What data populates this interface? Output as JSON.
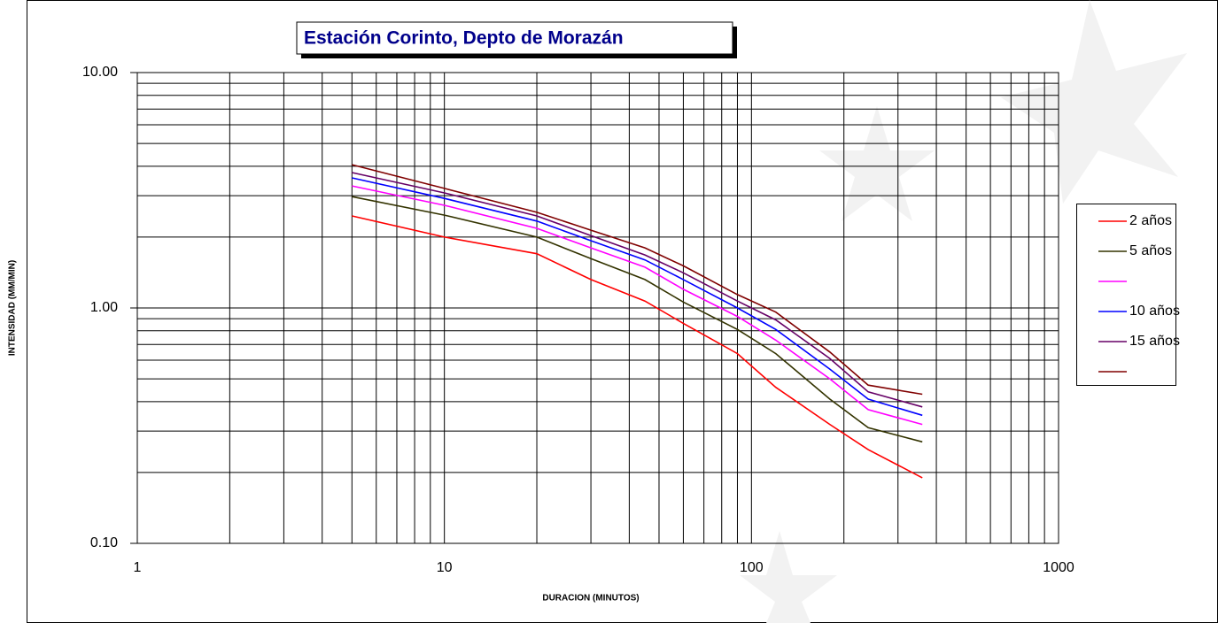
{
  "chart_data": {
    "type": "line",
    "title": "Estación Corinto, Depto de Morazán",
    "x_label": "DURACION (MINUTOS)",
    "y_label": "INTENSIDAD (MM/MIN)",
    "x": [
      5,
      10,
      20,
      30,
      45,
      60,
      90,
      120,
      180,
      240,
      360
    ],
    "series": [
      {
        "name": "2 años",
        "color": "#ff0000",
        "values": [
          2.46,
          2.0,
          1.7,
          1.32,
          1.07,
          0.86,
          0.64,
          0.46,
          0.32,
          0.25,
          0.19
        ]
      },
      {
        "name": "5 años",
        "color": "#333300",
        "values": [
          2.97,
          2.48,
          2.0,
          1.62,
          1.32,
          1.06,
          0.81,
          0.64,
          0.41,
          0.31,
          0.27
        ]
      },
      {
        "color": "#ff00ff",
        "values": [
          3.3,
          2.73,
          2.18,
          1.8,
          1.49,
          1.2,
          0.92,
          0.73,
          0.5,
          0.37,
          0.32
        ]
      },
      {
        "name": "10 años",
        "color": "#0000ff",
        "values": [
          3.57,
          2.92,
          2.34,
          1.93,
          1.6,
          1.32,
          1.0,
          0.81,
          0.55,
          0.41,
          0.35
        ]
      },
      {
        "name": "15 años",
        "color": "#660066",
        "values": [
          3.76,
          3.08,
          2.46,
          2.03,
          1.68,
          1.41,
          1.07,
          0.89,
          0.61,
          0.44,
          0.38
        ]
      },
      {
        "color": "#800000",
        "values": [
          4.06,
          3.22,
          2.55,
          2.14,
          1.8,
          1.51,
          1.14,
          0.96,
          0.65,
          0.47,
          0.43
        ]
      }
    ],
    "xlim": [
      1,
      1000
    ],
    "ylim": [
      0.1,
      10
    ],
    "xticks": [
      1,
      10,
      100,
      1000
    ],
    "yticks": [
      {
        "value": 0.1,
        "label": "0.10"
      },
      {
        "value": 1,
        "label": "1.00"
      },
      {
        "value": 10,
        "label": "10.00"
      }
    ],
    "minor_xticks": [
      2,
      3,
      4,
      5,
      6,
      7,
      8,
      9,
      20,
      30,
      40,
      50,
      60,
      70,
      80,
      90,
      200,
      300,
      400,
      500,
      600,
      700,
      800,
      900
    ],
    "minor_yticks": [
      0.2,
      0.3,
      0.4,
      0.5,
      0.6,
      0.7,
      0.8,
      0.9,
      2,
      3,
      4,
      5,
      6,
      7,
      8,
      9
    ],
    "log_x": true,
    "log_y": true,
    "grid": true
  }
}
